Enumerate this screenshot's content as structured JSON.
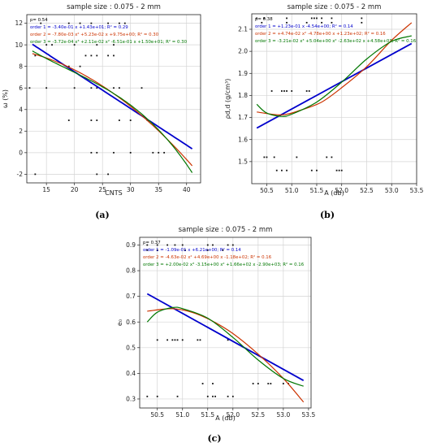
{
  "chart_data": [
    {
      "type": "scatter",
      "caption": "(a)",
      "title": "sample size : 0.075 - 2 mm",
      "xlabel": "CNTS",
      "ylabel": "ω (%)",
      "xlim": [
        11.5,
        42.5
      ],
      "ylim": [
        -2.8,
        12.8
      ],
      "xticks": [
        15,
        20,
        25,
        30,
        35,
        40
      ],
      "yticks": [
        -2,
        0,
        2,
        4,
        6,
        8,
        10,
        12
      ],
      "grid": true,
      "annotations": [
        {
          "text": "p= 0.54",
          "color": "#000000"
        },
        {
          "text": "order 1 = -3.40e-01 x +1.43e+01;  R² = 0.29",
          "color": "#0000cc"
        },
        {
          "text": "order 2 = -7.80e-03 x² +5.23e-02 x +9.75e+00;  R² = 0.30",
          "color": "#cc3300"
        },
        {
          "text": "order 3 = -3.72e-04 x³ +2.11e-02 x² -6.51e-01 x +1.50e+01;  R² = 0.30",
          "color": "#007700"
        }
      ],
      "points": [
        [
          14,
          12
        ],
        [
          19,
          12
        ],
        [
          21,
          12
        ],
        [
          23,
          12
        ],
        [
          26,
          12
        ],
        [
          28,
          12
        ],
        [
          29,
          12
        ],
        [
          15,
          10
        ],
        [
          16,
          10
        ],
        [
          20,
          10
        ],
        [
          24,
          10
        ],
        [
          27,
          10
        ],
        [
          13,
          9
        ],
        [
          22,
          9
        ],
        [
          23,
          9
        ],
        [
          24,
          9
        ],
        [
          26,
          9
        ],
        [
          27,
          9
        ],
        [
          19,
          8
        ],
        [
          21,
          8
        ],
        [
          12,
          6
        ],
        [
          15,
          6
        ],
        [
          20,
          6
        ],
        [
          23,
          6
        ],
        [
          24,
          6
        ],
        [
          27,
          6
        ],
        [
          28,
          6
        ],
        [
          32,
          6
        ],
        [
          19,
          3
        ],
        [
          23,
          3
        ],
        [
          24,
          3
        ],
        [
          28,
          3
        ],
        [
          30,
          3
        ],
        [
          33,
          3
        ],
        [
          23,
          0
        ],
        [
          24,
          0
        ],
        [
          27,
          0
        ],
        [
          30,
          0
        ],
        [
          34,
          0
        ],
        [
          35,
          0
        ],
        [
          36,
          0
        ],
        [
          13,
          -2
        ],
        [
          24,
          -2
        ],
        [
          26,
          -2
        ]
      ],
      "series": [
        {
          "name": "order 1",
          "color": "#0000cc",
          "width": 1.8,
          "coef": [
            -0.34,
            14.3
          ]
        },
        {
          "name": "order 2",
          "color": "#cc3300",
          "width": 1.2,
          "coef": [
            -0.0078,
            0.0523,
            9.75
          ]
        },
        {
          "name": "order 3",
          "color": "#007700",
          "width": 1.2,
          "coef": [
            -0.000372,
            0.0211,
            -0.651,
            15.0
          ]
        }
      ]
    },
    {
      "type": "scatter",
      "caption": "(b)",
      "title": "sample size : 0.075 - 2 mm",
      "xlabel": "A (db)",
      "ylabel": "ρd,d (g/cm³)",
      "xlim": [
        50.2,
        53.5
      ],
      "ylim": [
        1.4,
        2.17
      ],
      "xticks": [
        50.5,
        51.0,
        51.5,
        52.0,
        52.5,
        53.0,
        53.5
      ],
      "yticks": [
        1.5,
        1.6,
        1.7,
        1.8,
        1.9,
        2.0,
        2.1
      ],
      "grid": true,
      "annotations": [
        {
          "text": "p= 0.38",
          "color": "#000000"
        },
        {
          "text": "order 1 = +1.23e-01 x -4.54e+00;  R² = 0.14",
          "color": "#0000cc"
        },
        {
          "text": "order 2 = +4.74e-02 x² -4.78e+00 x +1.23e+02;  R² = 0.16",
          "color": "#cc3300"
        },
        {
          "text": "order 3 = -3.21e-02 x³ +5.04e+00 x² -2.63e+02 x +4.58e+03;  R² = 0.16",
          "color": "#007700"
        }
      ],
      "points": [
        [
          50.3,
          2.15
        ],
        [
          50.45,
          2.15
        ],
        [
          50.9,
          2.15
        ],
        [
          51.4,
          2.15
        ],
        [
          51.45,
          2.15
        ],
        [
          51.5,
          2.15
        ],
        [
          51.6,
          2.15
        ],
        [
          51.8,
          2.15
        ],
        [
          52.4,
          2.15
        ],
        [
          50.4,
          2.13
        ],
        [
          50.9,
          2.13
        ],
        [
          51.3,
          2.13
        ],
        [
          51.6,
          2.13
        ],
        [
          51.8,
          2.13
        ],
        [
          52.4,
          2.13
        ],
        [
          50.6,
          1.82
        ],
        [
          50.8,
          1.82
        ],
        [
          50.85,
          1.82
        ],
        [
          50.9,
          1.82
        ],
        [
          51.0,
          1.82
        ],
        [
          51.3,
          1.82
        ],
        [
          51.35,
          1.82
        ],
        [
          50.45,
          1.52
        ],
        [
          50.5,
          1.52
        ],
        [
          50.65,
          1.52
        ],
        [
          51.1,
          1.52
        ],
        [
          51.7,
          1.52
        ],
        [
          51.8,
          1.52
        ],
        [
          50.7,
          1.46
        ],
        [
          50.8,
          1.46
        ],
        [
          50.9,
          1.46
        ],
        [
          51.4,
          1.46
        ],
        [
          51.5,
          1.46
        ],
        [
          51.9,
          1.46
        ],
        [
          51.95,
          1.46
        ],
        [
          52.0,
          1.46
        ]
      ],
      "series": [
        {
          "name": "order 1",
          "color": "#0000cc",
          "width": 1.8,
          "fit": {
            "x": [
              50.3,
              53.4
            ],
            "y": [
              1.652,
              2.035
            ]
          }
        },
        {
          "name": "order 2",
          "color": "#cc3300",
          "width": 1.2,
          "fit": {
            "x": [
              50.3,
              50.8,
              51.2,
              51.6,
              52.0,
              52.5,
              53.0,
              53.4
            ],
            "y": [
              1.725,
              1.712,
              1.735,
              1.77,
              1.835,
              1.93,
              2.05,
              2.13
            ]
          }
        },
        {
          "name": "order 3",
          "color": "#007700",
          "width": 1.2,
          "fit": {
            "x": [
              50.3,
              50.5,
              50.8,
              51.0,
              51.5,
              52.0,
              52.5,
              53.0,
              53.4
            ],
            "y": [
              1.76,
              1.72,
              1.705,
              1.715,
              1.77,
              1.86,
              1.965,
              2.045,
              2.07
            ]
          }
        }
      ]
    },
    {
      "type": "scatter",
      "caption": "(c)",
      "title": "sample size : 0.075 - 2 mm",
      "xlabel": "A (db)",
      "ylabel": "e₀",
      "xlim": [
        50.15,
        53.55
      ],
      "ylim": [
        0.265,
        0.93
      ],
      "xticks": [
        50.5,
        51.0,
        51.5,
        52.0,
        52.5,
        53.0,
        53.5
      ],
      "yticks": [
        0.3,
        0.4,
        0.5,
        0.6,
        0.7,
        0.8,
        0.9
      ],
      "grid": true,
      "annotations": [
        {
          "text": "p= 0.37",
          "color": "#000000"
        },
        {
          "text": "order 1 = -1.09e-01 x +6.21e+00;  R² = 0.14",
          "color": "#0000cc"
        },
        {
          "text": "order 2 = -4.63e-02 x² +4.69e+00 x -1.18e+02;  R² = 0.16",
          "color": "#cc3300"
        },
        {
          "text": "order 3 = +2.00e-02 x³ -3.15e+00 x² +1.66e+02 x -2.90e+03;  R² = 0.16",
          "color": "#007700"
        }
      ],
      "points": [
        [
          50.3,
          0.9
        ],
        [
          50.5,
          0.9
        ],
        [
          50.7,
          0.9
        ],
        [
          50.85,
          0.9
        ],
        [
          51.0,
          0.9
        ],
        [
          51.5,
          0.9
        ],
        [
          51.6,
          0.9
        ],
        [
          51.9,
          0.9
        ],
        [
          52.0,
          0.9
        ],
        [
          50.3,
          0.88
        ],
        [
          50.5,
          0.88
        ],
        [
          51.05,
          0.88
        ],
        [
          51.5,
          0.88
        ],
        [
          51.8,
          0.88
        ],
        [
          50.5,
          0.53
        ],
        [
          50.7,
          0.53
        ],
        [
          50.8,
          0.53
        ],
        [
          50.85,
          0.53
        ],
        [
          50.9,
          0.53
        ],
        [
          51.0,
          0.53
        ],
        [
          51.3,
          0.53
        ],
        [
          51.35,
          0.53
        ],
        [
          51.9,
          0.53
        ],
        [
          51.4,
          0.36
        ],
        [
          51.6,
          0.36
        ],
        [
          52.4,
          0.36
        ],
        [
          52.5,
          0.36
        ],
        [
          52.7,
          0.36
        ],
        [
          52.75,
          0.36
        ],
        [
          53.0,
          0.36
        ],
        [
          53.1,
          0.36
        ],
        [
          50.3,
          0.31
        ],
        [
          50.5,
          0.31
        ],
        [
          50.9,
          0.31
        ],
        [
          51.5,
          0.31
        ],
        [
          51.6,
          0.31
        ],
        [
          51.65,
          0.31
        ],
        [
          51.9,
          0.31
        ],
        [
          52.0,
          0.31
        ]
      ],
      "series": [
        {
          "name": "order 1",
          "color": "#0000cc",
          "width": 1.8,
          "fit": {
            "x": [
              50.3,
              53.4
            ],
            "y": [
              0.71,
              0.372
            ]
          }
        },
        {
          "name": "order 2",
          "color": "#cc3300",
          "width": 1.2,
          "fit": {
            "x": [
              50.3,
              50.8,
              51.2,
              51.6,
              52.0,
              52.5,
              53.0,
              53.4
            ],
            "y": [
              0.642,
              0.652,
              0.637,
              0.603,
              0.555,
              0.475,
              0.38,
              0.288
            ]
          }
        },
        {
          "name": "order 3",
          "color": "#007700",
          "width": 1.2,
          "fit": {
            "x": [
              50.3,
              50.5,
              50.8,
              51.0,
              51.5,
              52.0,
              52.5,
              53.0,
              53.4
            ],
            "y": [
              0.6,
              0.638,
              0.656,
              0.652,
              0.615,
              0.54,
              0.452,
              0.38,
              0.35
            ]
          }
        }
      ]
    }
  ]
}
